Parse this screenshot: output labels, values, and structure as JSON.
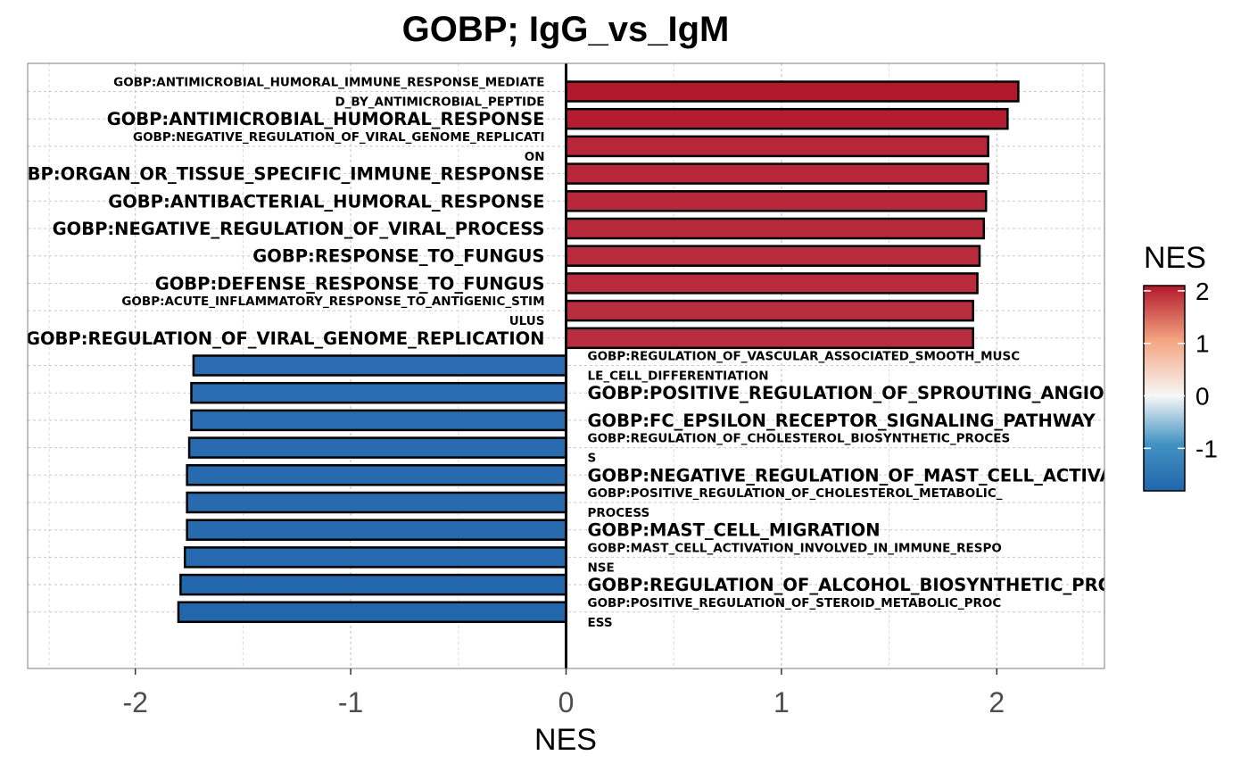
{
  "chart_data": {
    "type": "bar",
    "orientation": "horizontal",
    "title": "GOBP; IgG_vs_IgM",
    "xlabel": "NES",
    "ylabel": "",
    "xlim": [
      -2.5,
      2.5
    ],
    "x_ticks": [
      -2,
      -1,
      0,
      1,
      2
    ],
    "x_tick_labels": [
      "-2",
      "-1",
      "0",
      "1",
      "2"
    ],
    "grid": true,
    "legend": {
      "title": "NES",
      "position": "right",
      "ticks": [
        2,
        1,
        0,
        -1
      ],
      "tick_labels": [
        "2",
        "1",
        "0",
        "-1"
      ],
      "range": [
        -1.81,
        2.1
      ],
      "colors": {
        "low": "#2166ac",
        "mid": "#f7f7f7",
        "high": "#b2182b"
      }
    },
    "bars": [
      {
        "term": "GOBP:ANTIMICROBIAL_HUMORAL_IMMUNE_RESPONSE_MEDIATED_BY_ANTIMICROBIAL_PEPTIDE",
        "lines": [
          "GOBP:ANTIMICROBIAL_HUMORAL_IMMUNE_RESPONSE_MEDIATE",
          "D_BY_ANTIMICROBIAL_PEPTIDE"
        ],
        "nes": 2.1
      },
      {
        "term": "GOBP:ANTIMICROBIAL_HUMORAL_RESPONSE",
        "lines": [
          "GOBP:ANTIMICROBIAL_HUMORAL_RESPONSE"
        ],
        "nes": 2.05
      },
      {
        "term": "GOBP:NEGATIVE_REGULATION_OF_VIRAL_GENOME_REPLICATION",
        "lines": [
          "GOBP:NEGATIVE_REGULATION_OF_VIRAL_GENOME_REPLICATI",
          "ON"
        ],
        "nes": 1.96
      },
      {
        "term": "GOBP:ORGAN_OR_TISSUE_SPECIFIC_IMMUNE_RESPONSE",
        "lines": [
          "GOBP:ORGAN_OR_TISSUE_SPECIFIC_IMMUNE_RESPONSE"
        ],
        "nes": 1.96
      },
      {
        "term": "GOBP:ANTIBACTERIAL_HUMORAL_RESPONSE",
        "lines": [
          "GOBP:ANTIBACTERIAL_HUMORAL_RESPONSE"
        ],
        "nes": 1.95
      },
      {
        "term": "GOBP:NEGATIVE_REGULATION_OF_VIRAL_PROCESS",
        "lines": [
          "GOBP:NEGATIVE_REGULATION_OF_VIRAL_PROCESS"
        ],
        "nes": 1.94
      },
      {
        "term": "GOBP:RESPONSE_TO_FUNGUS",
        "lines": [
          "GOBP:RESPONSE_TO_FUNGUS"
        ],
        "nes": 1.92
      },
      {
        "term": "GOBP:DEFENSE_RESPONSE_TO_FUNGUS",
        "lines": [
          "GOBP:DEFENSE_RESPONSE_TO_FUNGUS"
        ],
        "nes": 1.91
      },
      {
        "term": "GOBP:ACUTE_INFLAMMATORY_RESPONSE_TO_ANTIGENIC_STIMULUS",
        "lines": [
          "GOBP:ACUTE_INFLAMMATORY_RESPONSE_TO_ANTIGENIC_STIM",
          "ULUS"
        ],
        "nes": 1.89
      },
      {
        "term": "GOBP:REGULATION_OF_VIRAL_GENOME_REPLICATION",
        "lines": [
          "GOBP:REGULATION_OF_VIRAL_GENOME_REPLICATION"
        ],
        "nes": 1.89
      },
      {
        "term": "GOBP:REGULATION_OF_VASCULAR_ASSOCIATED_SMOOTH_MUSCLE_CELL_DIFFERENTIATION",
        "lines": [
          "GOBP:REGULATION_OF_VASCULAR_ASSOCIATED_SMOOTH_MUSC",
          "LE_CELL_DIFFERENTIATION"
        ],
        "nes": -1.73
      },
      {
        "term": "GOBP:POSITIVE_REGULATION_OF_SPROUTING_ANGIOGENESIS",
        "lines": [
          "GOBP:POSITIVE_REGULATION_OF_SPROUTING_ANGIOGENESIS"
        ],
        "nes": -1.74
      },
      {
        "term": "GOBP:FC_EPSILON_RECEPTOR_SIGNALING_PATHWAY",
        "lines": [
          "GOBP:FC_EPSILON_RECEPTOR_SIGNALING_PATHWAY"
        ],
        "nes": -1.74
      },
      {
        "term": "GOBP:REGULATION_OF_CHOLESTEROL_BIOSYNTHETIC_PROCESS",
        "lines": [
          "GOBP:REGULATION_OF_CHOLESTEROL_BIOSYNTHETIC_PROCES",
          "S"
        ],
        "nes": -1.75
      },
      {
        "term": "GOBP:NEGATIVE_REGULATION_OF_MAST_CELL_ACTIVATION",
        "lines": [
          "GOBP:NEGATIVE_REGULATION_OF_MAST_CELL_ACTIVATION"
        ],
        "nes": -1.76
      },
      {
        "term": "GOBP:POSITIVE_REGULATION_OF_CHOLESTEROL_METABOLIC_PROCESS",
        "lines": [
          "GOBP:POSITIVE_REGULATION_OF_CHOLESTEROL_METABOLIC_",
          "PROCESS"
        ],
        "nes": -1.76
      },
      {
        "term": "GOBP:MAST_CELL_MIGRATION",
        "lines": [
          "GOBP:MAST_CELL_MIGRATION"
        ],
        "nes": -1.76
      },
      {
        "term": "GOBP:MAST_CELL_ACTIVATION_INVOLVED_IN_IMMUNE_RESPONSE",
        "lines": [
          "GOBP:MAST_CELL_ACTIVATION_INVOLVED_IN_IMMUNE_RESPO",
          "NSE"
        ],
        "nes": -1.77
      },
      {
        "term": "GOBP:REGULATION_OF_ALCOHOL_BIOSYNTHETIC_PROCESS",
        "lines": [
          "GOBP:REGULATION_OF_ALCOHOL_BIOSYNTHETIC_PROCESS"
        ],
        "nes": -1.79
      },
      {
        "term": "GOBP:POSITIVE_REGULATION_OF_STEROID_METABOLIC_PROCESS",
        "lines": [
          "GOBP:POSITIVE_REGULATION_OF_STEROID_METABOLIC_PROC",
          "ESS"
        ],
        "nes": -1.8
      }
    ]
  }
}
